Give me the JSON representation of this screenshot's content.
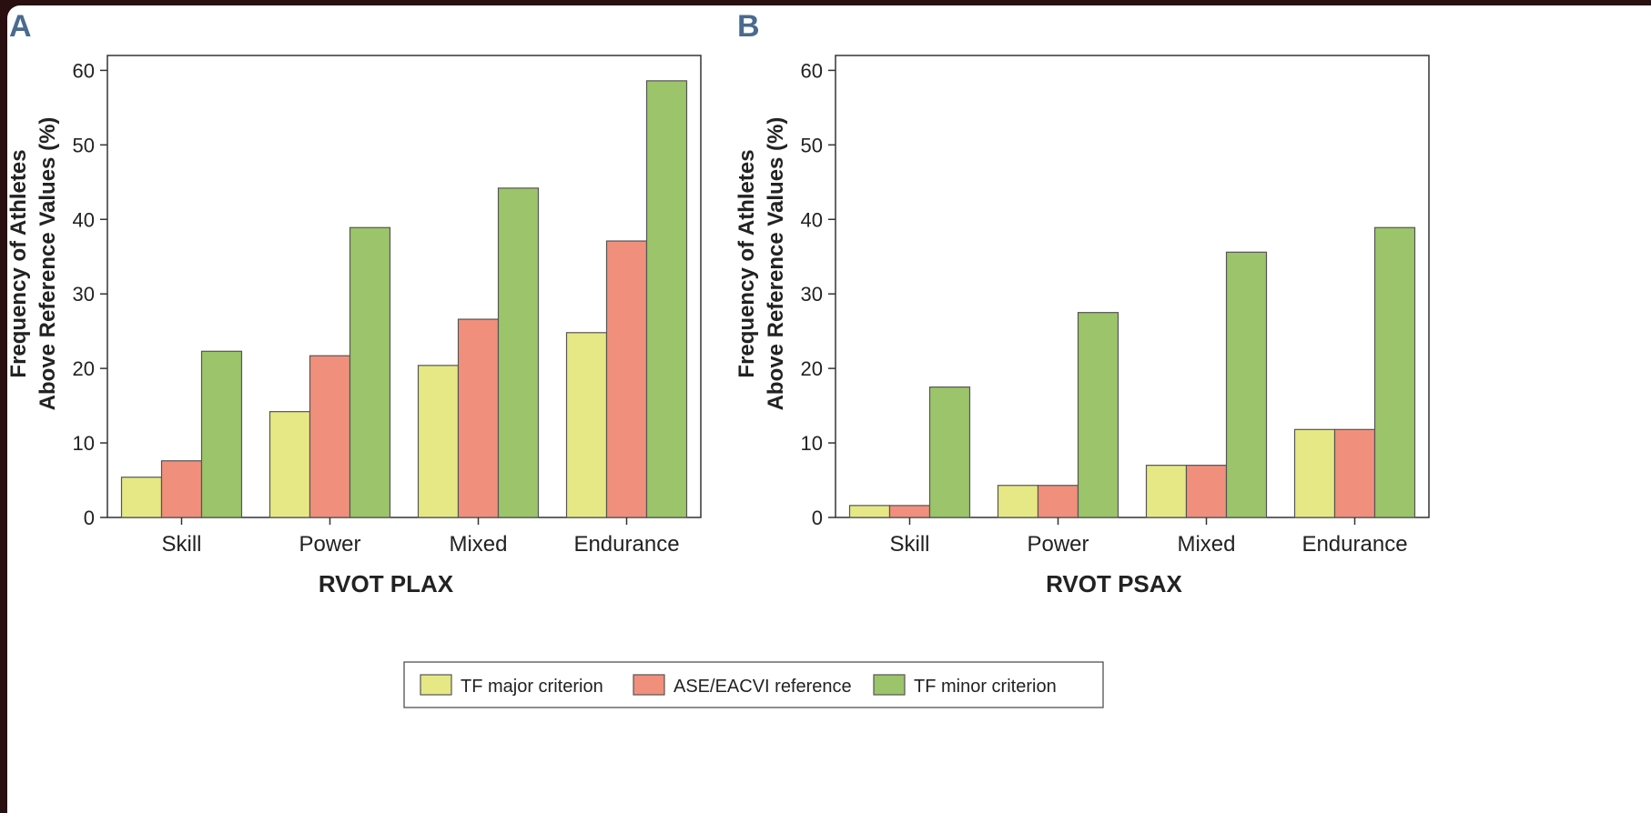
{
  "chart_data": [
    {
      "type": "bar",
      "panel": "A",
      "xlabel": "RVOT PLAX",
      "ylabel_lines": [
        "Frequency of Athletes",
        "Above Reference Values (%)"
      ],
      "categories": [
        "Skill",
        "Power",
        "Mixed",
        "Endurance"
      ],
      "ylim": [
        0,
        62
      ],
      "yticks": [
        0,
        10,
        20,
        30,
        40,
        50,
        60
      ],
      "series": [
        {
          "name": "TF major criterion",
          "values": [
            5.4,
            14.2,
            20.4,
            24.8
          ]
        },
        {
          "name": "ASE/EACVI reference",
          "values": [
            7.6,
            21.7,
            26.6,
            37.1
          ]
        },
        {
          "name": "TF minor criterion",
          "values": [
            22.3,
            38.9,
            44.2,
            58.6
          ]
        }
      ]
    },
    {
      "type": "bar",
      "panel": "B",
      "xlabel": "RVOT PSAX",
      "ylabel_lines": [
        "Frequency of Athletes",
        "Above Reference Values (%)"
      ],
      "categories": [
        "Skill",
        "Power",
        "Mixed",
        "Endurance"
      ],
      "ylim": [
        0,
        62
      ],
      "yticks": [
        0,
        10,
        20,
        30,
        40,
        50,
        60
      ],
      "series": [
        {
          "name": "TF major criterion",
          "values": [
            1.6,
            4.3,
            7.0,
            11.8
          ]
        },
        {
          "name": "ASE/EACVI reference",
          "values": [
            1.6,
            4.3,
            7.0,
            11.8
          ]
        },
        {
          "name": "TF minor criterion",
          "values": [
            17.5,
            27.5,
            35.6,
            38.9
          ]
        }
      ]
    }
  ],
  "colors": {
    "tf_major": "#e6e885",
    "ase_eacvi": "#f0907c",
    "tf_minor": "#9cc46a",
    "panel_letter": "#4a6a8f",
    "bar_stroke": "#555555"
  },
  "legend": {
    "items": [
      {
        "label": "TF major criterion",
        "color": "#e6e885"
      },
      {
        "label": "ASE/EACVI reference",
        "color": "#f0907c"
      },
      {
        "label": "TF minor criterion",
        "color": "#9cc46a"
      }
    ]
  }
}
